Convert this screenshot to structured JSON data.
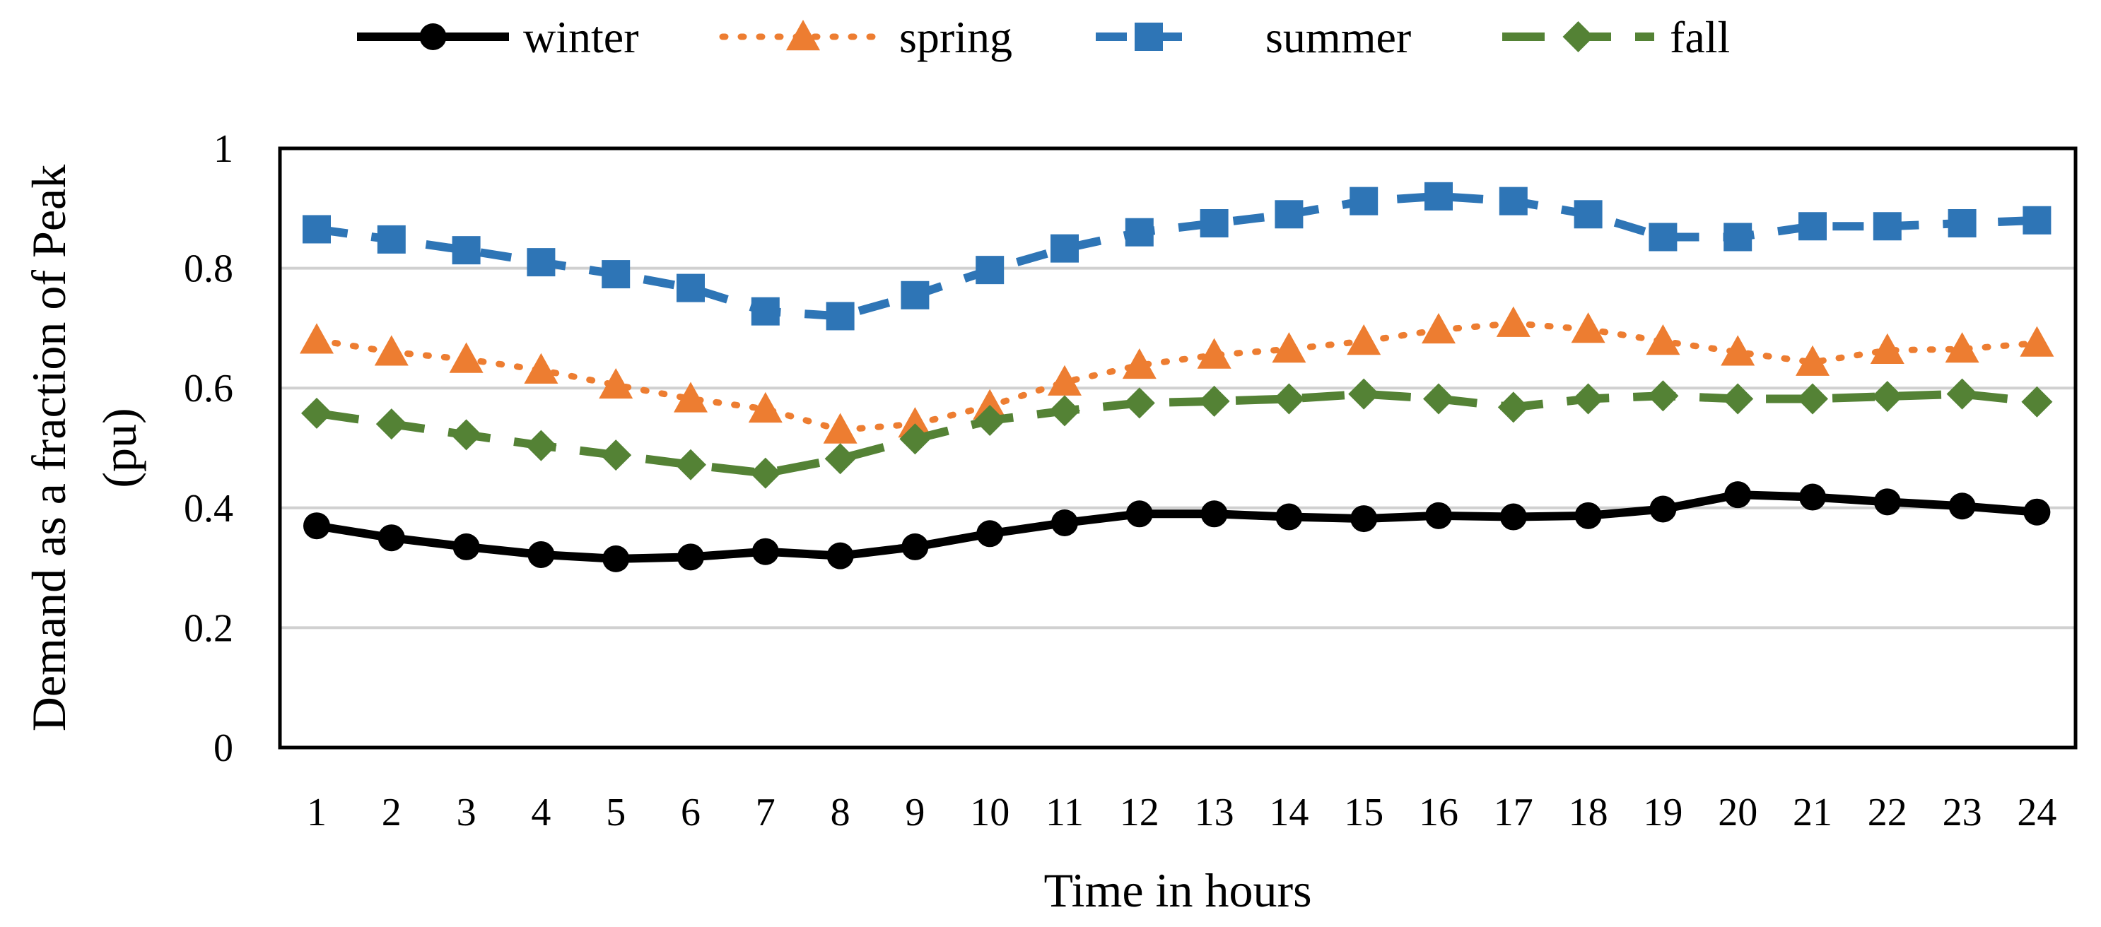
{
  "chart_data": {
    "type": "line",
    "title": "",
    "xlabel": "Time in hours",
    "ylabel_line1": "Demand as a fraction of Peak",
    "ylabel_line2": "(pu)",
    "x": [
      1,
      2,
      3,
      4,
      5,
      6,
      7,
      8,
      9,
      10,
      11,
      12,
      13,
      14,
      15,
      16,
      17,
      18,
      19,
      20,
      21,
      22,
      23,
      24
    ],
    "ylim": [
      0,
      1
    ],
    "yticks": [
      0,
      0.2,
      0.4,
      0.6,
      0.8,
      1
    ],
    "ytick_labels": [
      "0",
      "0.2",
      "0.4",
      "0.6",
      "0.8",
      "1"
    ],
    "grid": true,
    "legend_position": "top",
    "series": [
      {
        "name": "winter",
        "color": "#000000",
        "marker": "circle",
        "dash": "solid",
        "values": [
          0.37,
          0.35,
          0.335,
          0.322,
          0.315,
          0.318,
          0.327,
          0.32,
          0.335,
          0.357,
          0.375,
          0.39,
          0.39,
          0.385,
          0.382,
          0.387,
          0.385,
          0.387,
          0.398,
          0.422,
          0.418,
          0.41,
          0.403,
          0.393
        ]
      },
      {
        "name": "spring",
        "color": "#ED7D31",
        "marker": "triangle",
        "dash": "dotted",
        "values": [
          0.68,
          0.66,
          0.648,
          0.63,
          0.605,
          0.582,
          0.565,
          0.53,
          0.54,
          0.57,
          0.61,
          0.638,
          0.655,
          0.665,
          0.678,
          0.697,
          0.708,
          0.698,
          0.678,
          0.66,
          0.643,
          0.663,
          0.665,
          0.675
        ]
      },
      {
        "name": "summer",
        "color": "#2E75B6",
        "marker": "square",
        "dash": "dashed",
        "values": [
          0.865,
          0.848,
          0.83,
          0.81,
          0.79,
          0.767,
          0.728,
          0.72,
          0.755,
          0.797,
          0.833,
          0.86,
          0.875,
          0.89,
          0.912,
          0.92,
          0.912,
          0.89,
          0.852,
          0.852,
          0.87,
          0.87,
          0.875,
          0.88
        ]
      },
      {
        "name": "fall",
        "color": "#548235",
        "marker": "diamond",
        "dash": "longdash",
        "values": [
          0.558,
          0.54,
          0.522,
          0.504,
          0.488,
          0.472,
          0.458,
          0.482,
          0.515,
          0.546,
          0.562,
          0.575,
          0.578,
          0.582,
          0.59,
          0.582,
          0.568,
          0.582,
          0.587,
          0.582,
          0.582,
          0.586,
          0.59,
          0.577
        ]
      }
    ]
  }
}
